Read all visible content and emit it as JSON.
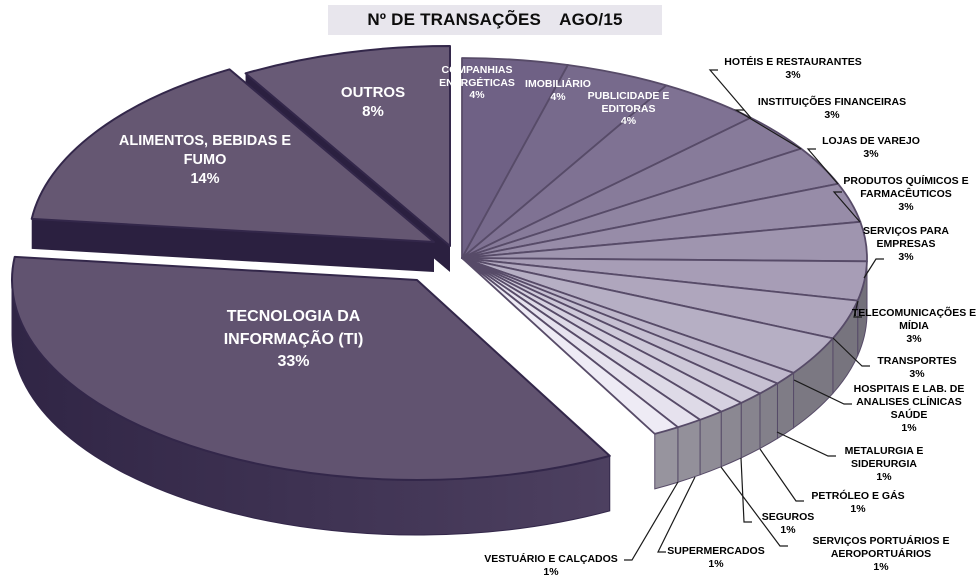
{
  "title": {
    "text": "Nº DE TRANSAÇÕES",
    "period": "AGO/15"
  },
  "colors": {
    "background": "#ffffff",
    "title_bg": "#e8e6ed",
    "separator": "#574b68",
    "big_separator": "#33274a",
    "cut_face": "#2b2040",
    "side_ti_dark": "#302545",
    "side_ti_light": "#4d4060",
    "leader_line": "#1a1a1a"
  },
  "chart_data": {
    "type": "pie",
    "title": "Nº DE TRANSAÇÕES AGO/15",
    "unit": "%",
    "order": "clockwise-from-top",
    "slices": [
      {
        "key": "companhias",
        "label": "COMPANHIAS ENERGÉTICAS",
        "pct": 4,
        "pct_label": "4%",
        "color": "#6f6185",
        "side": "#696671"
      },
      {
        "key": "imobiliario",
        "label": "IMOBILIÁRIO",
        "pct": 4,
        "pct_label": "4%",
        "color": "#776a8c",
        "side": "#6b6873"
      },
      {
        "key": "publicidade",
        "label": "PUBLICIDADE E EDITORAS",
        "pct": 4,
        "pct_label": "4%",
        "color": "#7f7293",
        "side": "#6c6974"
      },
      {
        "key": "hoteis",
        "label": "HOTÉIS E RESTAURANTES",
        "pct": 3,
        "pct_label": "3%",
        "color": "#877b9a",
        "side": "#6d6a75"
      },
      {
        "key": "instituicoes",
        "label": "INSTITUIÇÕES FINANCEIRAS",
        "pct": 3,
        "pct_label": "3%",
        "color": "#8f84a1",
        "side": "#6e6b76"
      },
      {
        "key": "lojas",
        "label": "LOJAS DE VAREJO",
        "pct": 3,
        "pct_label": "3%",
        "color": "#978ca8",
        "side": "#6f6c77"
      },
      {
        "key": "produtos",
        "label": "PRODUTOS QUÍMICOS E FARMACÊUTICOS",
        "pct": 3,
        "pct_label": "3%",
        "color": "#9f95af",
        "side": "#706d78"
      },
      {
        "key": "servicos_empresas",
        "label": "SERVIÇOS PARA EMPRESAS",
        "pct": 3,
        "pct_label": "3%",
        "color": "#a79db6",
        "side": "#73707a"
      },
      {
        "key": "telecom",
        "label": "TELECOMUNICAÇÕES E MÍDIA",
        "pct": 3,
        "pct_label": "3%",
        "color": "#afa6bd",
        "side": "#77747e"
      },
      {
        "key": "transportes",
        "label": "TRANSPORTES",
        "pct": 3,
        "pct_label": "3%",
        "color": "#b6afc4",
        "side": "#7b7882"
      },
      {
        "key": "hospitais",
        "label": "HOSPITAIS E LAB. DE ANALISES CLÍNICAS SAÚDE",
        "pct": 1,
        "pct_label": "1%",
        "color": "#beb7cb",
        "side": "#7f7c86"
      },
      {
        "key": "metalurgia",
        "label": "METALURGIA E SIDERURGIA",
        "pct": 1,
        "pct_label": "1%",
        "color": "#c6c0d2",
        "side": "#83808a"
      },
      {
        "key": "petroleo",
        "label": "PETRÓLEO E GÁS",
        "pct": 1,
        "pct_label": "1%",
        "color": "#cec9d9",
        "side": "#87848e"
      },
      {
        "key": "seguros",
        "label": "SEGUROS",
        "pct": 1,
        "pct_label": "1%",
        "color": "#d6d1e0",
        "side": "#8b8892"
      },
      {
        "key": "servicos_portuarios",
        "label": "SERVIÇOS PORTUÁRIOS E AEROPORTUÁRIOS",
        "pct": 1,
        "pct_label": "1%",
        "color": "#dedae7",
        "side": "#8f8c96"
      },
      {
        "key": "supermercados",
        "label": "SUPERMERCADOS",
        "pct": 1,
        "pct_label": "1%",
        "color": "#e6e2ee",
        "side": "#93909a"
      },
      {
        "key": "vestuario",
        "label": "VESTUÁRIO E CALÇADOS",
        "pct": 1,
        "pct_label": "1%",
        "color": "#eeebf5",
        "side": "#97949e"
      },
      {
        "key": "ti",
        "label": "TECNOLOGIA DA INFORMAÇÃO (TI)",
        "pct": 33,
        "pct_label": "33%",
        "color": "#615370",
        "side": "#443858"
      },
      {
        "key": "alimentos",
        "label": "ALIMENTOS, BEBIDAS E FUMO",
        "pct": 14,
        "pct_label": "14%",
        "color": "#655772",
        "side": "#3a2e4f"
      },
      {
        "key": "outros",
        "label": "OUTROS",
        "pct": 8,
        "pct_label": "8%",
        "color": "#685a76",
        "side": "#3a2e4f"
      }
    ]
  }
}
